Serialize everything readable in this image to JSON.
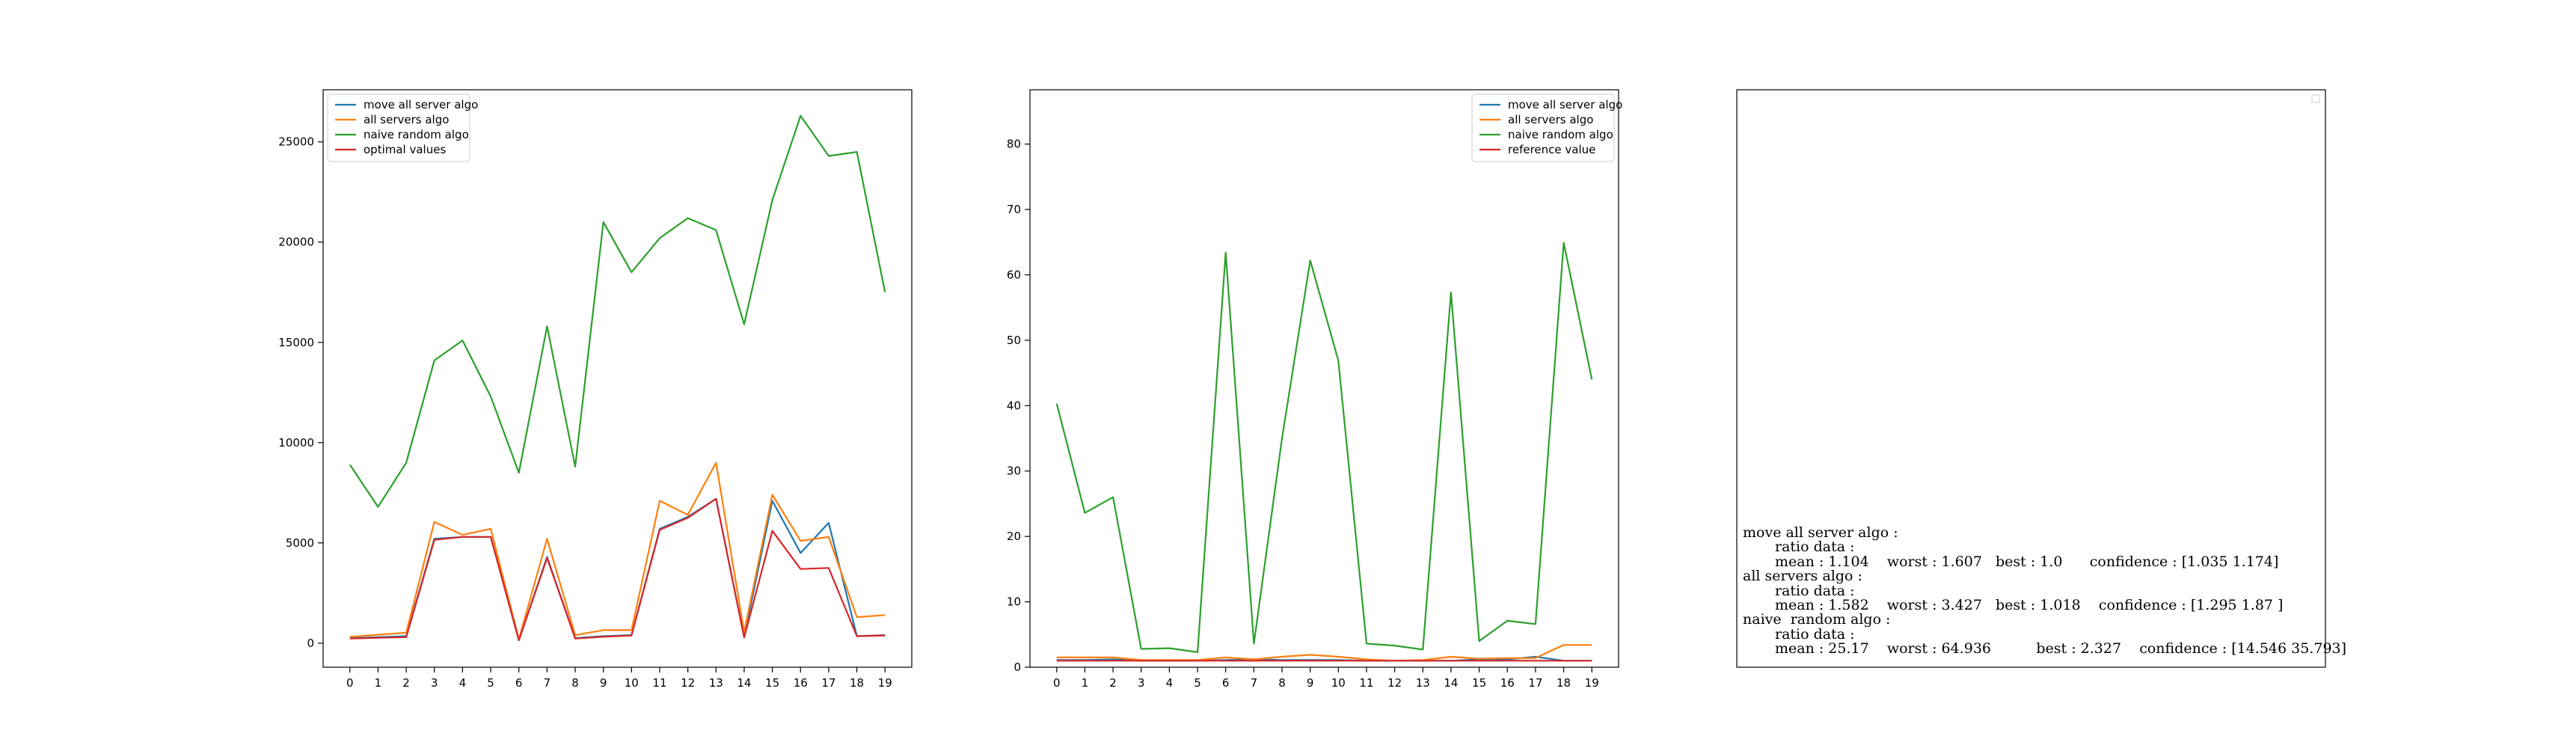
{
  "chart_data": [
    {
      "type": "line",
      "x": [
        0,
        1,
        2,
        3,
        4,
        5,
        6,
        7,
        8,
        9,
        10,
        11,
        12,
        13,
        14,
        15,
        16,
        17,
        18,
        19
      ],
      "xticks": [
        "0",
        "1",
        "2",
        "3",
        "4",
        "5",
        "6",
        "7",
        "8",
        "9",
        "10",
        "11",
        "12",
        "13",
        "14",
        "15",
        "16",
        "17",
        "18",
        "19"
      ],
      "yticks": [
        "0",
        "5000",
        "10000",
        "15000",
        "20000",
        "25000"
      ],
      "ytick_values": [
        0,
        5000,
        10000,
        15000,
        20000,
        25000
      ],
      "ylim": [
        -1200,
        27600
      ],
      "xlim": [
        -0.95,
        19.95
      ],
      "legend_position": "upper-left",
      "series": [
        {
          "name": "move all server algo",
          "color": "#1f77b4",
          "values": [
            250,
            300,
            350,
            5200,
            5300,
            5300,
            150,
            4300,
            250,
            350,
            400,
            5700,
            6300,
            7200,
            300,
            7100,
            4500,
            6000,
            350,
            400
          ]
        },
        {
          "name": "all servers algo",
          "color": "#ff7f0e",
          "values": [
            320,
            420,
            520,
            6050,
            5400,
            5700,
            200,
            5200,
            400,
            650,
            650,
            7100,
            6400,
            9000,
            550,
            7400,
            5100,
            5300,
            1300,
            1400
          ]
        },
        {
          "name": "naive  random algo",
          "color": "#2ca02c",
          "values": [
            8900,
            6800,
            9000,
            14100,
            15100,
            12300,
            8500,
            15800,
            8800,
            21000,
            18500,
            20200,
            21200,
            20600,
            15900,
            22100,
            26300,
            24300,
            24500,
            17500
          ]
        },
        {
          "name": "optimal values",
          "color": "#d62728",
          "values": [
            230,
            270,
            300,
            5150,
            5300,
            5300,
            140,
            4250,
            230,
            320,
            380,
            5650,
            6250,
            7200,
            280,
            5600,
            3700,
            3750,
            350,
            380
          ]
        }
      ]
    },
    {
      "type": "line",
      "x": [
        0,
        1,
        2,
        3,
        4,
        5,
        6,
        7,
        8,
        9,
        10,
        11,
        12,
        13,
        14,
        15,
        16,
        17,
        18,
        19
      ],
      "xticks": [
        "0",
        "1",
        "2",
        "3",
        "4",
        "5",
        "6",
        "7",
        "8",
        "9",
        "10",
        "11",
        "12",
        "13",
        "14",
        "15",
        "16",
        "17",
        "18",
        "19"
      ],
      "yticks": [
        "0",
        "10",
        "20",
        "30",
        "40",
        "50",
        "60",
        "70",
        "80"
      ],
      "ytick_values": [
        0,
        10,
        20,
        30,
        40,
        50,
        60,
        70,
        80
      ],
      "ylim": [
        0,
        88.3
      ],
      "xlim": [
        -0.95,
        19.95
      ],
      "legend_position": "upper-right",
      "series": [
        {
          "name": "move all server algo",
          "color": "#1f77b4",
          "values": [
            1.1,
            1.1,
            1.2,
            1.0,
            1.0,
            1.0,
            1.1,
            1.2,
            1.1,
            1.1,
            1.1,
            1.0,
            1.0,
            1.0,
            1.0,
            1.2,
            1.2,
            1.6,
            1.0,
            1.0
          ]
        },
        {
          "name": "all servers algo",
          "color": "#ff7f0e",
          "values": [
            1.5,
            1.5,
            1.5,
            1.1,
            1.1,
            1.1,
            1.5,
            1.2,
            1.6,
            1.9,
            1.6,
            1.2,
            1.0,
            1.1,
            1.6,
            1.3,
            1.4,
            1.4,
            3.4,
            3.4
          ]
        },
        {
          "name": "naive  random algo",
          "color": "#2ca02c",
          "values": [
            40.3,
            23.6,
            26.0,
            2.8,
            2.9,
            2.3,
            63.4,
            3.6,
            35.0,
            62.2,
            46.9,
            3.6,
            3.3,
            2.7,
            57.3,
            4.0,
            7.1,
            6.6,
            64.9,
            44.0
          ]
        },
        {
          "name": "reference value",
          "color": "#d62728",
          "values": [
            1.0,
            1.0,
            1.0,
            1.0,
            1.0,
            1.0,
            1.0,
            1.0,
            1.0,
            1.0,
            1.0,
            1.0,
            1.0,
            1.0,
            1.0,
            1.0,
            1.0,
            1.0,
            1.0,
            1.0
          ]
        }
      ]
    },
    {
      "type": "table",
      "lines": [
        "move all server algo :",
        "ratio data :",
        "mean : 1.104    worst : 1.607   best : 1.0      confidence : [1.035 1.174]",
        "all servers algo :",
        "ratio data :",
        "mean : 1.582    worst : 3.427   best : 1.018    confidence : [1.295 1.87 ]",
        "naive  random algo :",
        "ratio data :",
        "mean : 25.17    worst : 64.936          best : 2.327    confidence : [14.546 35.793]"
      ]
    }
  ]
}
